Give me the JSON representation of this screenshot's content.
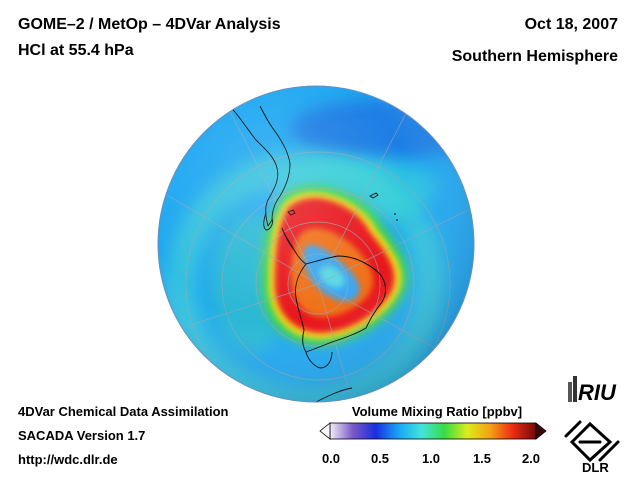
{
  "header": {
    "title_line1": "GOME–2 / MetOp – 4DVar Analysis",
    "title_line2": "HCl at 55.4 hPa",
    "date": "Oct 18, 2007",
    "hemisphere": "Southern Hemisphere"
  },
  "footer": {
    "line1": "4DVar Chemical Data Assimilation",
    "line2": "SACADA Version 1.7",
    "line3": "http://wdc.dlr.de"
  },
  "colorbar": {
    "title": "Volume Mixing Ratio [ppbv]",
    "ticks": [
      "0.0",
      "0.5",
      "1.0",
      "1.5",
      "2.0"
    ],
    "min": 0.0,
    "max": 2.0,
    "colors": [
      "#f2eef8",
      "#7a58c8",
      "#1a2ee0",
      "#18a6f6",
      "#42e4dc",
      "#38dc44",
      "#dcec1c",
      "#f4a014",
      "#ec2a14",
      "#700a0a"
    ]
  },
  "logos": {
    "riu": "RIU",
    "dlr": "DLR"
  },
  "map_colors": {
    "background_field": "#20a8f2",
    "vortex_collar": "#e8141c",
    "vortex_core": "#3aa6f0",
    "coastline": "#000000",
    "graticule": "#9aa6b0"
  }
}
